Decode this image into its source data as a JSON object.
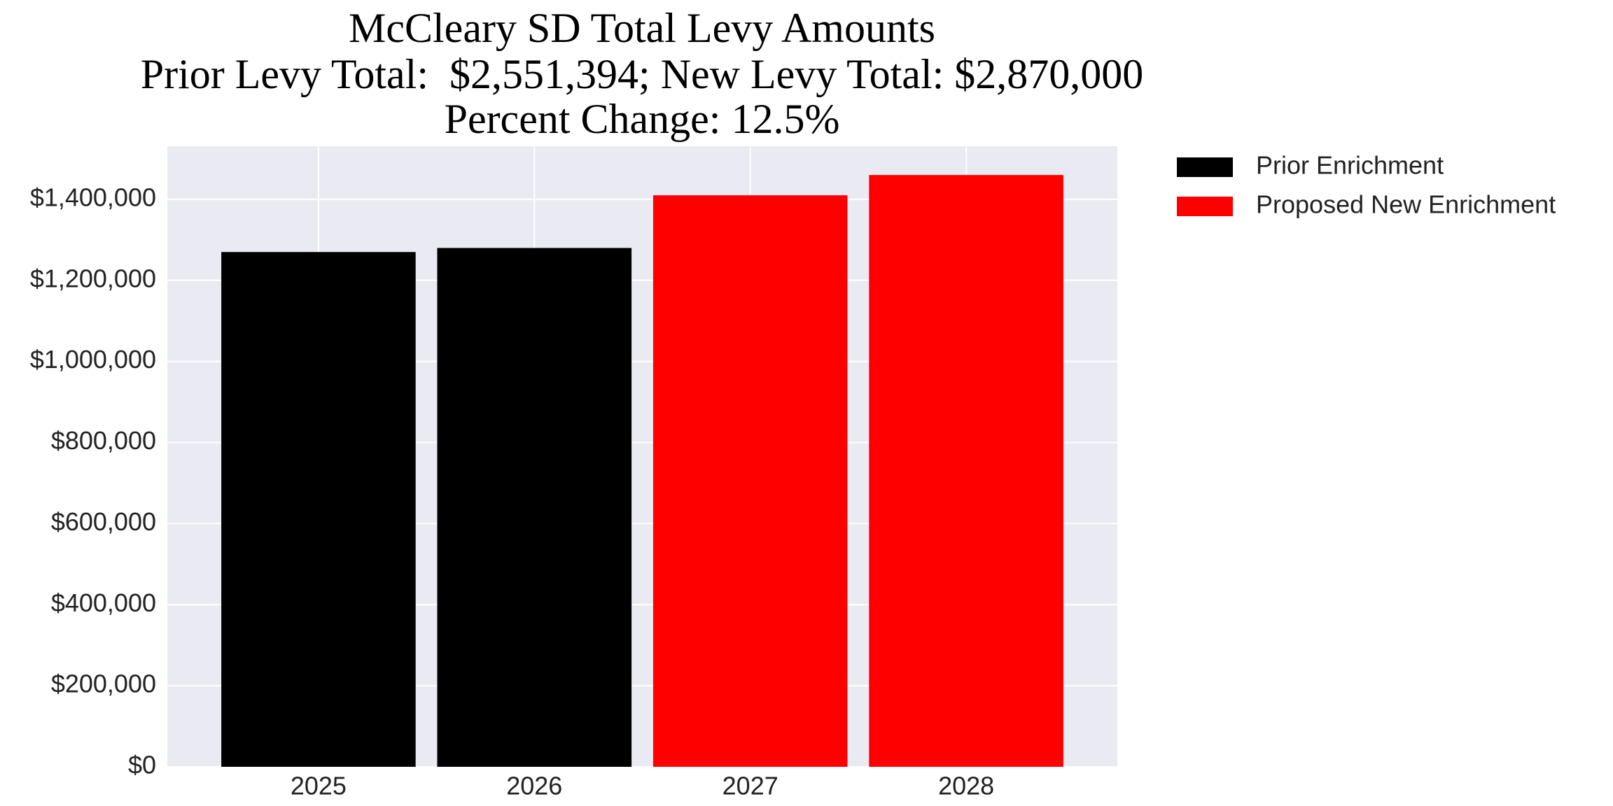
{
  "chart_data": {
    "type": "bar",
    "title": "McCleary SD Total Levy Amounts",
    "subtitle": [
      "Prior Levy Total:  $2,551,394; New Levy Total: $2,870,000",
      "Percent Change: 12.5%"
    ],
    "categories": [
      "2025",
      "2026",
      "2027",
      "2028"
    ],
    "series": [
      {
        "name": "Prior Enrichment",
        "color": "#000000",
        "values": [
          1270000,
          1280000,
          null,
          null
        ]
      },
      {
        "name": "Proposed New Enrichment",
        "color": "#ff0000",
        "values": [
          null,
          null,
          1410000,
          1460000
        ]
      }
    ],
    "ylim": [
      0,
      1531000
    ],
    "yticks": [
      {
        "value": 0,
        "label": "$0"
      },
      {
        "value": 200000,
        "label": "$200,000"
      },
      {
        "value": 400000,
        "label": "$400,000"
      },
      {
        "value": 600000,
        "label": "$600,000"
      },
      {
        "value": 800000,
        "label": "$800,000"
      },
      {
        "value": 1000000,
        "label": "$1,000,000"
      },
      {
        "value": 1200000,
        "label": "$1,200,000"
      },
      {
        "value": 1400000,
        "label": "$1,400,000"
      }
    ],
    "grid": true,
    "legend": "outside-right"
  }
}
